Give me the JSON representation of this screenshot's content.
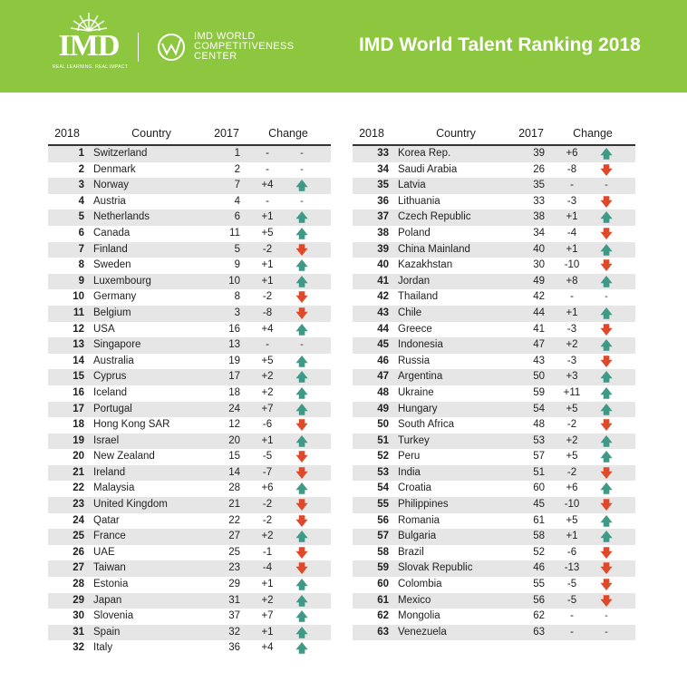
{
  "header": {
    "logo_word": "IMD",
    "logo_tagline": "REAL LEARNING. REAL IMPACT",
    "wcc_lines": [
      "IMD WORLD",
      "COMPETITIVENESS",
      "CENTER"
    ],
    "title": "IMD World Talent Ranking 2018",
    "banner_color": "#8dc63f"
  },
  "columns": {
    "rank": "2018",
    "country": "Country",
    "prev": "2017",
    "change": "Change"
  },
  "arrow_symbols": {
    "up": "🡅",
    "down": "🡇",
    "none": "-"
  },
  "arrow_colors": {
    "up": "#3e9a86",
    "down": "#e0482a"
  },
  "left_rows": [
    {
      "rank": "1",
      "country": "Switzerland",
      "prev": "1",
      "change": "-",
      "dir": "none"
    },
    {
      "rank": "2",
      "country": "Denmark",
      "prev": "2",
      "change": "-",
      "dir": "none"
    },
    {
      "rank": "3",
      "country": "Norway",
      "prev": "7",
      "change": "+4",
      "dir": "up"
    },
    {
      "rank": "4",
      "country": "Austria",
      "prev": "4",
      "change": "-",
      "dir": "none"
    },
    {
      "rank": "5",
      "country": "Netherlands",
      "prev": "6",
      "change": "+1",
      "dir": "up"
    },
    {
      "rank": "6",
      "country": "Canada",
      "prev": "11",
      "change": "+5",
      "dir": "up"
    },
    {
      "rank": "7",
      "country": "Finland",
      "prev": "5",
      "change": "-2",
      "dir": "down"
    },
    {
      "rank": "8",
      "country": "Sweden",
      "prev": "9",
      "change": "+1",
      "dir": "up"
    },
    {
      "rank": "9",
      "country": "Luxembourg",
      "prev": "10",
      "change": "+1",
      "dir": "up"
    },
    {
      "rank": "10",
      "country": "Germany",
      "prev": "8",
      "change": "-2",
      "dir": "down"
    },
    {
      "rank": "11",
      "country": "Belgium",
      "prev": "3",
      "change": "-8",
      "dir": "down"
    },
    {
      "rank": "12",
      "country": "USA",
      "prev": "16",
      "change": "+4",
      "dir": "up"
    },
    {
      "rank": "13",
      "country": "Singapore",
      "prev": "13",
      "change": "-",
      "dir": "none"
    },
    {
      "rank": "14",
      "country": "Australia",
      "prev": "19",
      "change": "+5",
      "dir": "up"
    },
    {
      "rank": "15",
      "country": "Cyprus",
      "prev": "17",
      "change": "+2",
      "dir": "up"
    },
    {
      "rank": "16",
      "country": "Iceland",
      "prev": "18",
      "change": "+2",
      "dir": "up"
    },
    {
      "rank": "17",
      "country": "Portugal",
      "prev": "24",
      "change": "+7",
      "dir": "up"
    },
    {
      "rank": "18",
      "country": "Hong Kong SAR",
      "prev": "12",
      "change": "-6",
      "dir": "down"
    },
    {
      "rank": "19",
      "country": "Israel",
      "prev": "20",
      "change": "+1",
      "dir": "up"
    },
    {
      "rank": "20",
      "country": "New Zealand",
      "prev": "15",
      "change": "-5",
      "dir": "down"
    },
    {
      "rank": "21",
      "country": "Ireland",
      "prev": "14",
      "change": "-7",
      "dir": "down"
    },
    {
      "rank": "22",
      "country": "Malaysia",
      "prev": "28",
      "change": "+6",
      "dir": "up"
    },
    {
      "rank": "23",
      "country": "United Kingdom",
      "prev": "21",
      "change": "-2",
      "dir": "down"
    },
    {
      "rank": "24",
      "country": "Qatar",
      "prev": "22",
      "change": "-2",
      "dir": "down"
    },
    {
      "rank": "25",
      "country": "France",
      "prev": "27",
      "change": "+2",
      "dir": "up"
    },
    {
      "rank": "26",
      "country": "UAE",
      "prev": "25",
      "change": "-1",
      "dir": "down"
    },
    {
      "rank": "27",
      "country": "Taiwan",
      "prev": "23",
      "change": "-4",
      "dir": "down"
    },
    {
      "rank": "28",
      "country": "Estonia",
      "prev": "29",
      "change": "+1",
      "dir": "up"
    },
    {
      "rank": "29",
      "country": "Japan",
      "prev": "31",
      "change": "+2",
      "dir": "up"
    },
    {
      "rank": "30",
      "country": "Slovenia",
      "prev": "37",
      "change": "+7",
      "dir": "up"
    },
    {
      "rank": "31",
      "country": "Spain",
      "prev": "32",
      "change": "+1",
      "dir": "up"
    },
    {
      "rank": "32",
      "country": "Italy",
      "prev": "36",
      "change": "+4",
      "dir": "up"
    }
  ],
  "right_rows": [
    {
      "rank": "33",
      "country": "Korea Rep.",
      "prev": "39",
      "change": "+6",
      "dir": "up"
    },
    {
      "rank": "34",
      "country": "Saudi Arabia",
      "prev": "26",
      "change": "-8",
      "dir": "down"
    },
    {
      "rank": "35",
      "country": "Latvia",
      "prev": "35",
      "change": "-",
      "dir": "none"
    },
    {
      "rank": "36",
      "country": "Lithuania",
      "prev": "33",
      "change": "-3",
      "dir": "down"
    },
    {
      "rank": "37",
      "country": "Czech Republic",
      "prev": "38",
      "change": "+1",
      "dir": "up"
    },
    {
      "rank": "38",
      "country": "Poland",
      "prev": "34",
      "change": "-4",
      "dir": "down"
    },
    {
      "rank": "39",
      "country": "China Mainland",
      "prev": "40",
      "change": "+1",
      "dir": "up"
    },
    {
      "rank": "40",
      "country": "Kazakhstan",
      "prev": "30",
      "change": "-10",
      "dir": "down"
    },
    {
      "rank": "41",
      "country": "Jordan",
      "prev": "49",
      "change": "+8",
      "dir": "up"
    },
    {
      "rank": "42",
      "country": "Thailand",
      "prev": "42",
      "change": "-",
      "dir": "none"
    },
    {
      "rank": "43",
      "country": "Chile",
      "prev": "44",
      "change": "+1",
      "dir": "up"
    },
    {
      "rank": "44",
      "country": "Greece",
      "prev": "41",
      "change": "-3",
      "dir": "down"
    },
    {
      "rank": "45",
      "country": "Indonesia",
      "prev": "47",
      "change": "+2",
      "dir": "up"
    },
    {
      "rank": "46",
      "country": "Russia",
      "prev": "43",
      "change": "-3",
      "dir": "down"
    },
    {
      "rank": "47",
      "country": "Argentina",
      "prev": "50",
      "change": "+3",
      "dir": "up"
    },
    {
      "rank": "48",
      "country": "Ukraine",
      "prev": "59",
      "change": "+11",
      "dir": "up"
    },
    {
      "rank": "49",
      "country": "Hungary",
      "prev": "54",
      "change": "+5",
      "dir": "up"
    },
    {
      "rank": "50",
      "country": "South Africa",
      "prev": "48",
      "change": "-2",
      "dir": "down"
    },
    {
      "rank": "51",
      "country": "Turkey",
      "prev": "53",
      "change": "+2",
      "dir": "up"
    },
    {
      "rank": "52",
      "country": "Peru",
      "prev": "57",
      "change": "+5",
      "dir": "up"
    },
    {
      "rank": "53",
      "country": "India",
      "prev": "51",
      "change": "-2",
      "dir": "down"
    },
    {
      "rank": "54",
      "country": "Croatia",
      "prev": "60",
      "change": "+6",
      "dir": "up"
    },
    {
      "rank": "55",
      "country": "Philippines",
      "prev": "45",
      "change": "-10",
      "dir": "down"
    },
    {
      "rank": "56",
      "country": "Romania",
      "prev": "61",
      "change": "+5",
      "dir": "up"
    },
    {
      "rank": "57",
      "country": "Bulgaria",
      "prev": "58",
      "change": "+1",
      "dir": "up"
    },
    {
      "rank": "58",
      "country": "Brazil",
      "prev": "52",
      "change": "-6",
      "dir": "down"
    },
    {
      "rank": "59",
      "country": "Slovak Republic",
      "prev": "46",
      "change": "-13",
      "dir": "down"
    },
    {
      "rank": "60",
      "country": "Colombia",
      "prev": "55",
      "change": "-5",
      "dir": "down"
    },
    {
      "rank": "61",
      "country": "Mexico",
      "prev": "56",
      "change": "-5",
      "dir": "down"
    },
    {
      "rank": "62",
      "country": "Mongolia",
      "prev": "62",
      "change": "-",
      "dir": "none"
    },
    {
      "rank": "63",
      "country": "Venezuela",
      "prev": "63",
      "change": "-",
      "dir": "none"
    }
  ]
}
